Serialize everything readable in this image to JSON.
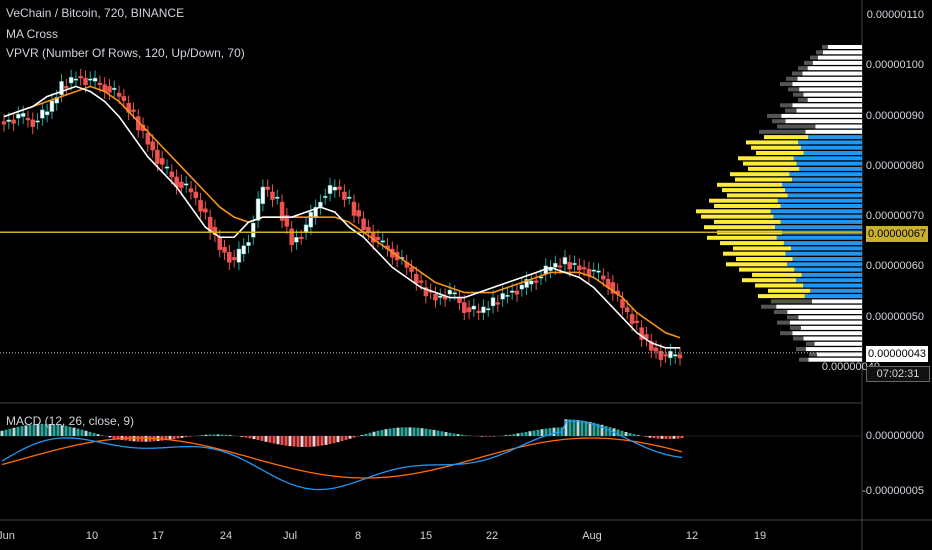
{
  "legend": {
    "symbol": "VeChain / Bitcoin, 720, BINANCE",
    "indicator1": "MA Cross",
    "indicator2": "VPVR (Number Of Rows, 120, Up/Down, 70)",
    "macd": "MACD (12, 26, close, 9)"
  },
  "price_axis": [
    "0.00000110",
    "0.00000100",
    "0.00000090",
    "0.00000080",
    "0.00000070",
    "0.00000060",
    "0.00000050",
    "0.00000040"
  ],
  "macd_axis": [
    "0.00000000",
    "-0.00000005"
  ],
  "tags": {
    "yellow_price": "0.00000067",
    "current_price": "0.00000043",
    "countdown": "07:02:31"
  },
  "date_axis": [
    "Jun",
    "10",
    "17",
    "24",
    "Jul",
    "8",
    "15",
    "22",
    "Aug",
    "12",
    "19"
  ],
  "colors": {
    "background": "#000000",
    "up": "#26a69a",
    "up_candle": "#ffffff",
    "down": "#ef5350",
    "ma_fast": "#ffffff",
    "ma_slow": "#f7931a",
    "vpvr_up": "#2196f3",
    "vpvr_down": "#ffeb3b",
    "macd_line": "#2196f3",
    "signal_line": "#ff6d00",
    "hline": "#c9b22a"
  },
  "chart_data": {
    "type": "candlestick",
    "series_close": [
      8.9e-07,
      9e-07,
      8.9e-07,
      9.1e-07,
      9.6e-07,
      9.8e-07,
      9.7e-07,
      9.6e-07,
      9.4e-07,
      9e-07,
      8.5e-07,
      8e-07,
      7.7e-07,
      7.5e-07,
      7e-07,
      6.4e-07,
      6.1e-07,
      6.6e-07,
      7.6e-07,
      7.3e-07,
      6.5e-07,
      6.8e-07,
      7.4e-07,
      7.6e-07,
      7.3e-07,
      6.8e-07,
      6.5e-07,
      6.3e-07,
      6e-07,
      5.6e-07,
      5.4e-07,
      5.5e-07,
      5.2e-07,
      5.1e-07,
      5.3e-07,
      5.5e-07,
      5.6e-07,
      5.8e-07,
      6e-07,
      6.1e-07,
      6e-07,
      5.9e-07,
      5.7e-07,
      5.2e-07,
      4.8e-07,
      4.4e-07,
      4.2e-07,
      4.3e-07
    ],
    "ma_fast": [
      9e-07,
      9.1e-07,
      9.2e-07,
      9.4e-07,
      9.5e-07,
      9.6e-07,
      9.5e-07,
      9.3e-07,
      9e-07,
      8.6e-07,
      8.2e-07,
      7.9e-07,
      7.6e-07,
      7.2e-07,
      6.8e-07,
      6.6e-07,
      6.6e-07,
      6.9e-07,
      7e-07,
      7e-07,
      7e-07,
      7.1e-07,
      7.2e-07,
      7.1e-07,
      6.8e-07,
      6.6e-07,
      6.3e-07,
      6e-07,
      5.8e-07,
      5.6e-07,
      5.5e-07,
      5.4e-07,
      5.4e-07,
      5.5e-07,
      5.6e-07,
      5.7e-07,
      5.8e-07,
      5.9e-07,
      6e-07,
      5.9e-07,
      5.8e-07,
      5.6e-07,
      5.3e-07,
      5e-07,
      4.7e-07,
      4.5e-07,
      4.4e-07,
      4.4e-07
    ],
    "ma_slow": [
      9e-07,
      9.1e-07,
      9.2e-07,
      9.3e-07,
      9.4e-07,
      9.5e-07,
      9.6e-07,
      9.5e-07,
      9.3e-07,
      9e-07,
      8.7e-07,
      8.4e-07,
      8.1e-07,
      7.8e-07,
      7.5e-07,
      7.2e-07,
      7e-07,
      6.9e-07,
      7e-07,
      7e-07,
      7e-07,
      7e-07,
      7e-07,
      7e-07,
      6.9e-07,
      6.7e-07,
      6.5e-07,
      6.3e-07,
      6.1e-07,
      5.9e-07,
      5.7e-07,
      5.6e-07,
      5.5e-07,
      5.5e-07,
      5.5e-07,
      5.6e-07,
      5.7e-07,
      5.8e-07,
      5.9e-07,
      5.9e-07,
      5.9e-07,
      5.8e-07,
      5.6e-07,
      5.4e-07,
      5.1e-07,
      4.9e-07,
      4.7e-07,
      4.6e-07
    ],
    "ylim": [
      3.9e-07,
      1.11e-06
    ]
  }
}
